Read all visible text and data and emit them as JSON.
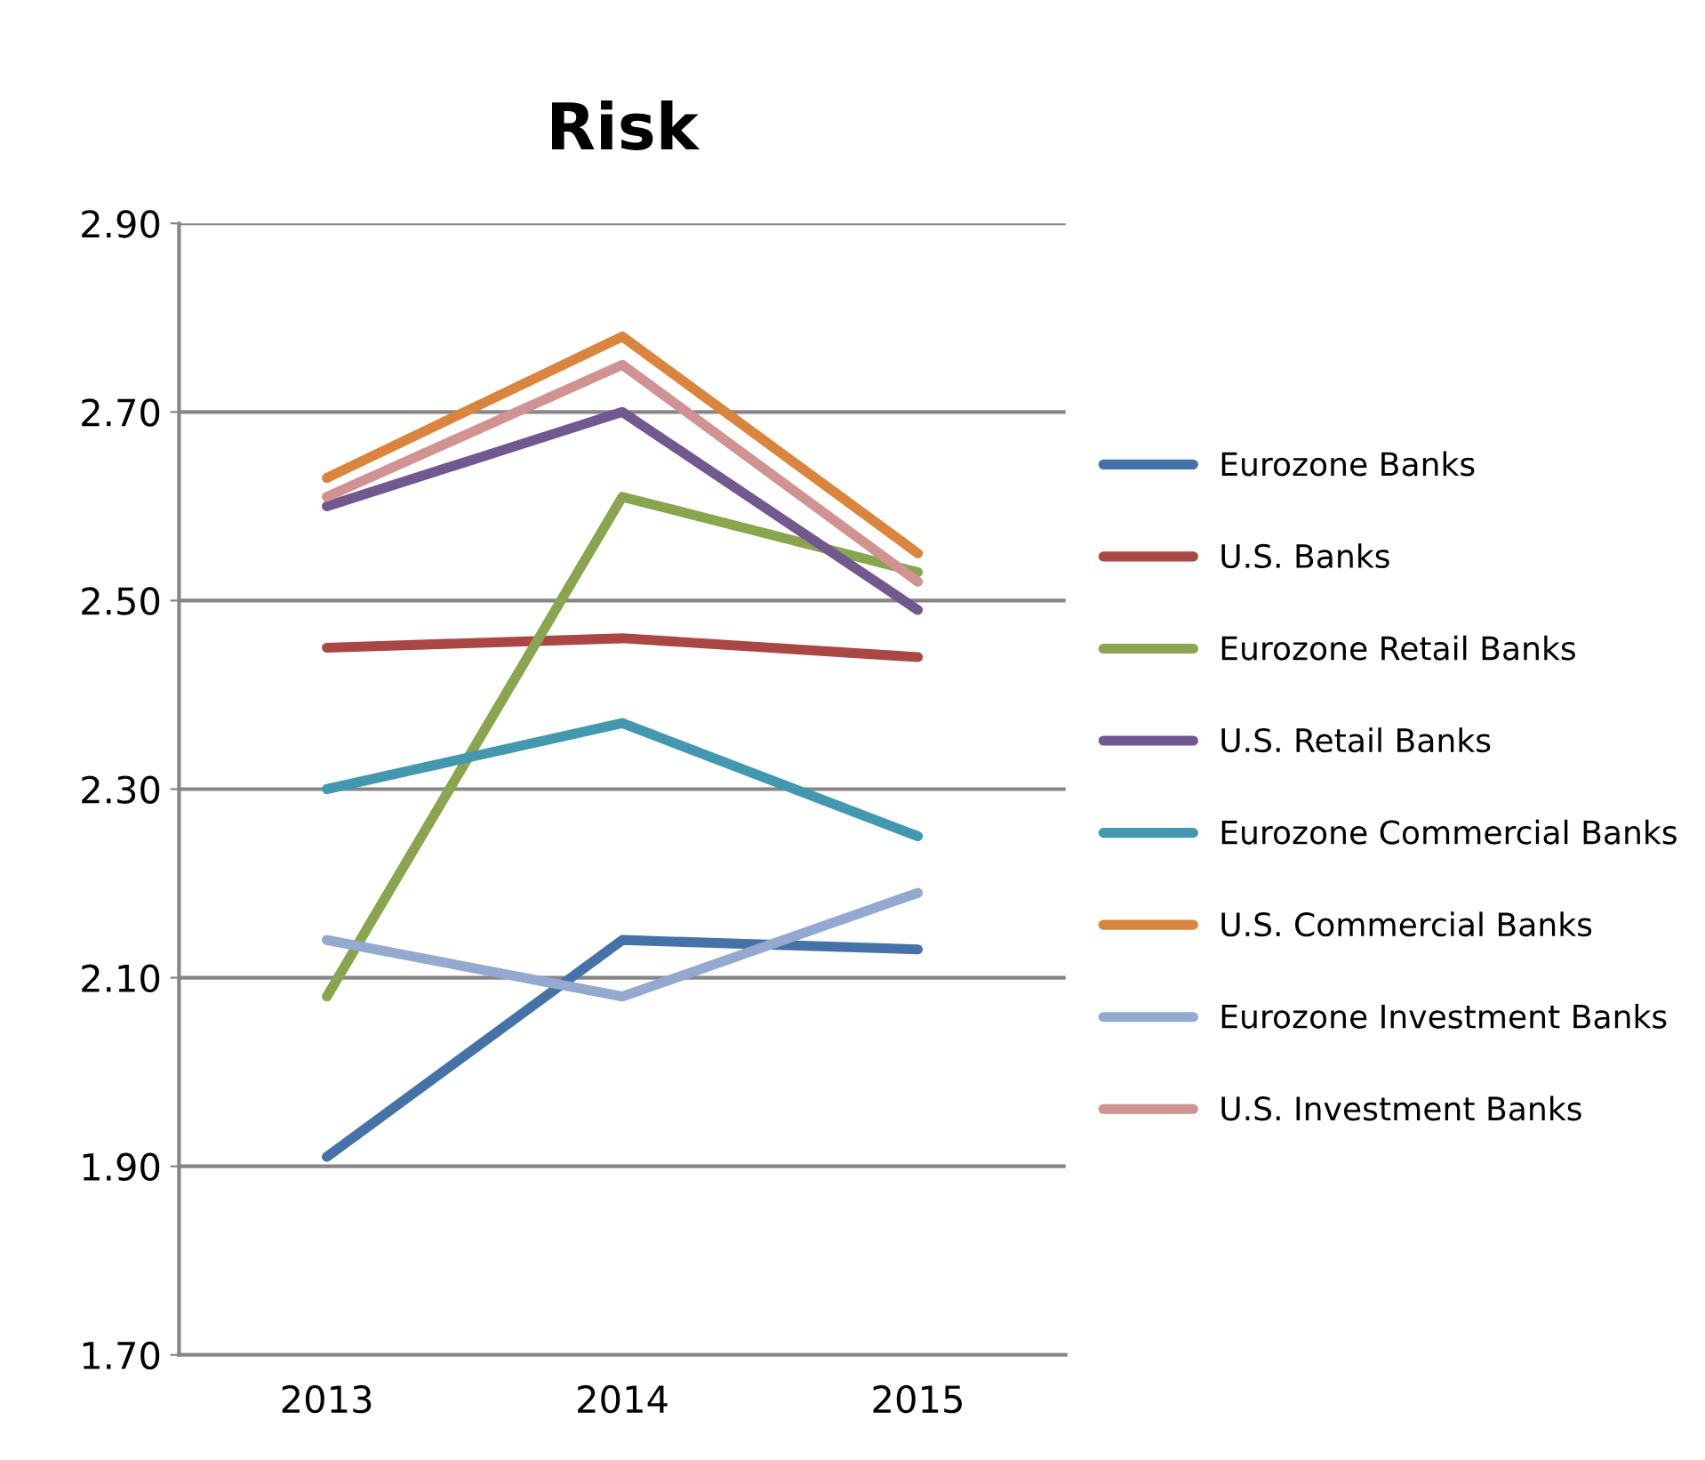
{
  "chart_data": {
    "type": "line",
    "title": "Risk",
    "categories": [
      "2013",
      "2014",
      "2015"
    ],
    "series": [
      {
        "name": "Eurozone Banks",
        "color": "#4572a7",
        "values": [
          1.91,
          2.14,
          2.13
        ]
      },
      {
        "name": "U.S. Banks",
        "color": "#aa4643",
        "values": [
          2.45,
          2.46,
          2.44
        ]
      },
      {
        "name": "Eurozone Retail Banks",
        "color": "#89a54e",
        "values": [
          2.08,
          2.61,
          2.53
        ]
      },
      {
        "name": "U.S. Retail Banks",
        "color": "#71588f",
        "values": [
          2.6,
          2.7,
          2.49
        ]
      },
      {
        "name": "Eurozone Commercial Banks",
        "color": "#4198af",
        "values": [
          2.3,
          2.37,
          2.25
        ]
      },
      {
        "name": "U.S. Commercial Banks",
        "color": "#db843d",
        "values": [
          2.63,
          2.78,
          2.55
        ]
      },
      {
        "name": "Eurozone Investment Banks",
        "color": "#93a9cf",
        "values": [
          2.14,
          2.08,
          2.19
        ]
      },
      {
        "name": "U.S. Investment Banks",
        "color": "#d19392",
        "values": [
          2.61,
          2.75,
          2.52
        ]
      }
    ],
    "ylim": [
      1.7,
      2.9
    ],
    "yticks": [
      {
        "value": 1.7,
        "label": "1.70"
      },
      {
        "value": 1.9,
        "label": "1.90"
      },
      {
        "value": 2.1,
        "label": "2.10"
      },
      {
        "value": 2.3,
        "label": "2.30"
      },
      {
        "value": 2.5,
        "label": "2.50"
      },
      {
        "value": 2.7,
        "label": "2.70"
      },
      {
        "value": 2.9,
        "label": "2.90"
      }
    ],
    "grid": "y",
    "legend": "right",
    "marker": "none",
    "line_style": "solid"
  }
}
